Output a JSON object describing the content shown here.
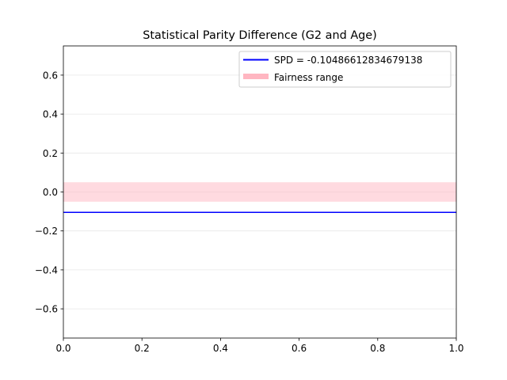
{
  "chart_data": {
    "type": "line",
    "title": "Statistical Parity Difference (G2 and Age)",
    "xlabel": "",
    "ylabel": "",
    "xlim": [
      0.0,
      1.0
    ],
    "ylim": [
      -0.75,
      0.75
    ],
    "x_ticks": [
      0.0,
      0.2,
      0.4,
      0.6,
      0.8,
      1.0
    ],
    "x_tick_labels": [
      "0.0",
      "0.2",
      "0.4",
      "0.6",
      "0.8",
      "1.0"
    ],
    "y_ticks": [
      -0.6,
      -0.4,
      -0.2,
      0.0,
      0.2,
      0.4,
      0.6
    ],
    "y_tick_labels": [
      "−0.6",
      "−0.4",
      "−0.2",
      "0.0",
      "0.2",
      "0.4",
      "0.6"
    ],
    "grid": "horizontal",
    "legend_position": "top-right",
    "series": [
      {
        "name": "SPD = -0.10486612834679138",
        "kind": "hline",
        "y": -0.10486612834679138,
        "color": "#0000ff"
      }
    ],
    "bands": [
      {
        "name": "Fairness range",
        "y_min": -0.05,
        "y_max": 0.05,
        "color": "#ffb6c1"
      }
    ]
  }
}
